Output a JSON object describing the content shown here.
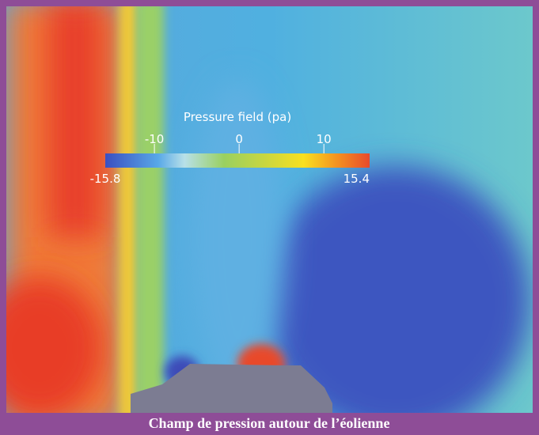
{
  "figure": {
    "colorbar": {
      "title": "Pressure field (pa)",
      "min": -15.8,
      "max": 15.4,
      "ticks": [
        -10,
        0,
        10
      ]
    },
    "caption": "Champ de pression autour de l’éolienne"
  }
}
